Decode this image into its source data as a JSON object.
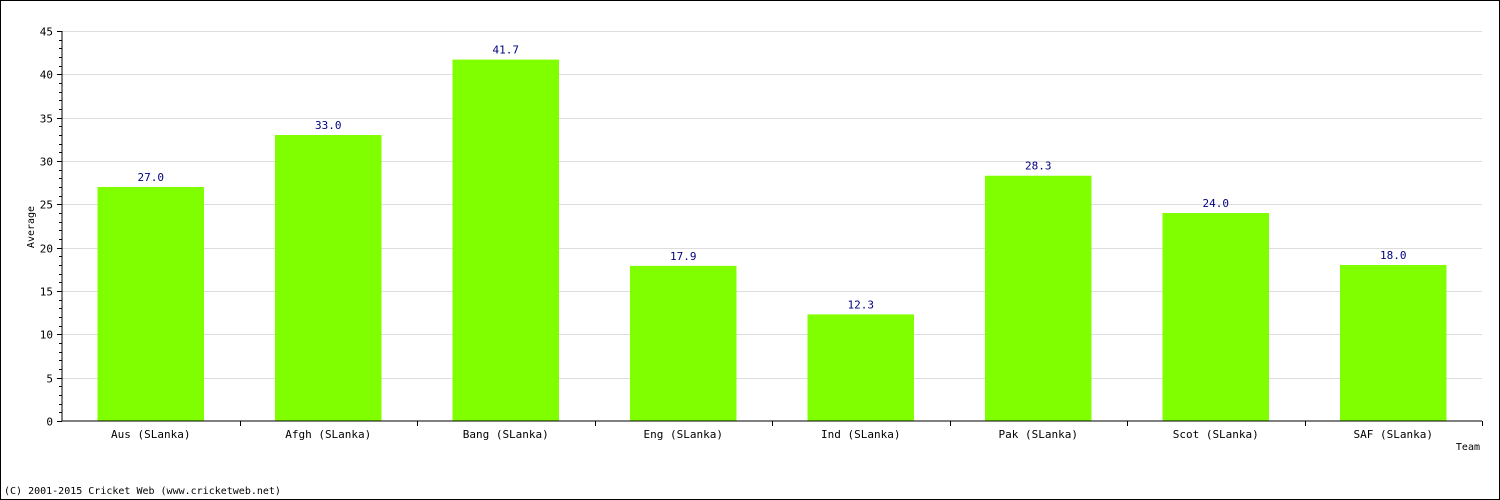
{
  "chart_data": {
    "type": "bar",
    "title": "",
    "xlabel": "Team",
    "ylabel": "Average",
    "ylim": [
      0,
      45
    ],
    "ytick_step": 5,
    "grid": true,
    "bar_color": "#80ff00",
    "data_label_color": "#000080",
    "categories": [
      "Aus (SLanka)",
      "Afgh (SLanka)",
      "Bang (SLanka)",
      "Eng (SLanka)",
      "Ind (SLanka)",
      "Pak (SLanka)",
      "Scot (SLanka)",
      "SAF (SLanka)"
    ],
    "values": [
      27.0,
      33.0,
      41.7,
      17.9,
      12.3,
      28.3,
      24.0,
      18.0
    ],
    "value_labels": [
      "27.0",
      "33.0",
      "41.7",
      "17.9",
      "12.3",
      "28.3",
      "24.0",
      "18.0"
    ]
  },
  "footer": {
    "copyright": "(C) 2001-2015 Cricket Web (www.cricketweb.net)"
  }
}
